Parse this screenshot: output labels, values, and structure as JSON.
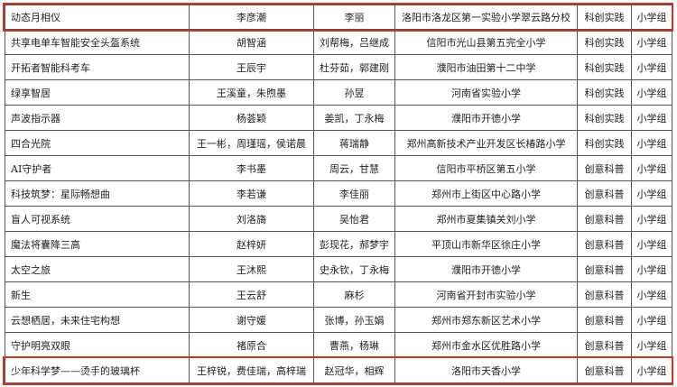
{
  "table": {
    "rows": [
      [
        "动态月相仪",
        "李彦潮",
        "李丽",
        "洛阳市洛龙区第一实验小学翠云路分校",
        "科创实践",
        "小学组"
      ],
      [
        "共享电单车智能安全头盔系统",
        "胡智涵",
        "刘帮梅，吕继成",
        "信阳市光山县第五完全小学",
        "科创实践",
        "小学组"
      ],
      [
        "开拓者智能科考车",
        "王辰宇",
        "杜芬茹，郭建刚",
        "濮阳市油田第十二中学",
        "科创实践",
        "小学组"
      ],
      [
        "绿享智居",
        "王溪童，朱煦墨",
        "孙昱",
        "河南省实验小学",
        "科创实践",
        "小学组"
      ],
      [
        "声波指示器",
        "杨荟颖",
        "姜凯，丁永梅",
        "濮阳市开德小学",
        "科创实践",
        "小学组"
      ],
      [
        "四合光院",
        "王一彬，周瑾瑶，侯诺晨",
        "蒋瑞静",
        "郑州高新技术产业开发区长椿路小学",
        "科创实践",
        "小学组"
      ],
      [
        "AI守护者",
        "李书墨",
        "周云，甘慧",
        "信阳市平桥区第五小学",
        "创意科普",
        "小学组"
      ],
      [
        "科技筑梦：星际畅想曲",
        "李若谦",
        "李佳丽",
        "郑州市上街区中心路小学",
        "创意科普",
        "小学组"
      ],
      [
        "盲人可视系统",
        "刘洛旖",
        "吴怡君",
        "郑州市夏集镇关刘小学",
        "创意科普",
        "小学组"
      ],
      [
        "魔法将囊降三高",
        "赵梓妍",
        "彭现花，郝梦宇",
        "平顶山市新华区徐庄小学",
        "创意科普",
        "小学组"
      ],
      [
        "太空之旅",
        "王沐熙",
        "史永钦，丁永梅",
        "濮阳市开德小学",
        "创意科普",
        "小学组"
      ],
      [
        "新生",
        "王云舒",
        "麻杉",
        "河南省开封市实验小学",
        "创意科普",
        "小学组"
      ],
      [
        "云想栖居，未来住宅构想",
        "谢守媛",
        "张博，孙玉娟",
        "郑州市郑东新区艺术小学",
        "创意科普",
        "小学组"
      ],
      [
        "守护明亮双眼",
        "褚原合",
        "曹燕，杨琳",
        "郑州市金水区优胜路小学",
        "创意科普",
        "小学组"
      ],
      [
        "少年科学梦——烫手的玻璃杯",
        "王梓锐，费佳瑞，高梓瑞",
        "赵冠华，相辉",
        "洛阳市天香小学",
        "创意科普",
        "小学组"
      ]
    ]
  }
}
